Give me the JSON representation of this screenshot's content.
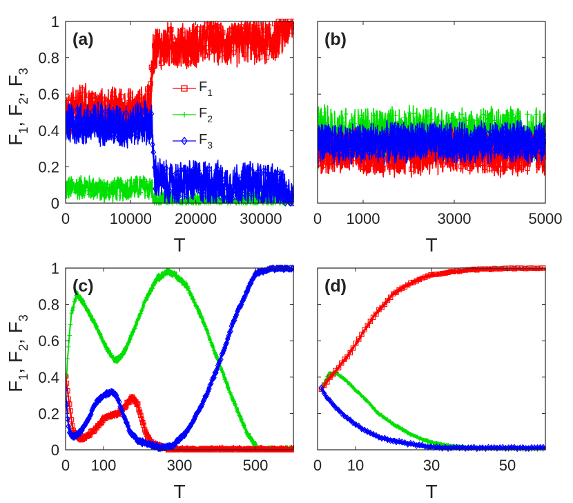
{
  "figure": {
    "colors": {
      "F1": "#ff0000",
      "F2": "#00e000",
      "F3": "#0000ff",
      "axis": "#262626"
    },
    "ylabel": {
      "main": "F",
      "subs": [
        "1",
        "2",
        "3"
      ],
      "sep": ", "
    },
    "legend": {
      "entries": [
        {
          "base": "F",
          "sub": "1",
          "marker": "square",
          "color": "#ff0000"
        },
        {
          "base": "F",
          "sub": "2",
          "marker": "plus",
          "color": "#00e000"
        },
        {
          "base": "F",
          "sub": "3",
          "marker": "diamond",
          "color": "#0000ff"
        }
      ]
    }
  },
  "chart_data": [
    {
      "id": "a",
      "label": "(a)",
      "type": "line",
      "xlabel": "T",
      "ylabel": "F1, F2, F3",
      "xlim": [
        0,
        35000
      ],
      "ylim": [
        0,
        1
      ],
      "xticks": [
        0,
        10000,
        20000,
        30000
      ],
      "xtick_labels": [
        "0",
        "10000",
        "20000",
        "30000"
      ],
      "yticks": [
        0,
        0.2,
        0.4,
        0.6,
        0.8,
        1
      ],
      "ytick_labels": [
        "0",
        "0.2",
        "0.4",
        "0.6",
        "0.8",
        "1"
      ],
      "show_yticklabels": true,
      "series": [
        {
          "name": "F1",
          "color": "#ff0000",
          "marker": "square",
          "x": [
            0,
            2000,
            5000,
            8000,
            11000,
            13000,
            13400,
            13800,
            16000,
            19000,
            22000,
            24000,
            26000,
            28000,
            30000,
            32000,
            33500,
            34500,
            35000
          ],
          "y": [
            0.45,
            0.55,
            0.5,
            0.52,
            0.5,
            0.55,
            0.82,
            0.85,
            0.87,
            0.86,
            0.9,
            0.88,
            0.87,
            0.9,
            0.88,
            0.9,
            0.95,
            1.0,
            1.0
          ],
          "noise": 0.09,
          "band": 0.03
        },
        {
          "name": "F2",
          "color": "#00e000",
          "marker": "plus",
          "x": [
            0,
            3000,
            6000,
            9000,
            12000,
            13300,
            13500,
            20000,
            30000,
            35000
          ],
          "y": [
            0.08,
            0.09,
            0.07,
            0.08,
            0.09,
            0.08,
            0.0,
            0.0,
            0.0,
            0.0
          ],
          "noise": 0.05,
          "band": 0.015
        },
        {
          "name": "F3",
          "color": "#0000ff",
          "marker": "diamond",
          "x": [
            0,
            3000,
            6000,
            9000,
            12000,
            13300,
            13600,
            16000,
            20000,
            23500,
            24200,
            28000,
            32000,
            33500,
            34000,
            35000
          ],
          "y": [
            0.45,
            0.43,
            0.44,
            0.42,
            0.45,
            0.42,
            0.15,
            0.1,
            0.12,
            0.11,
            0.09,
            0.11,
            0.1,
            0.08,
            0.0,
            0.0
          ],
          "noise": 0.08,
          "band": 0.035
        }
      ]
    },
    {
      "id": "b",
      "label": "(b)",
      "type": "line",
      "xlabel": "T",
      "ylabel": "",
      "xlim": [
        0,
        5000
      ],
      "ylim": [
        0,
        1
      ],
      "xticks": [
        0,
        1000,
        3000,
        5000
      ],
      "xtick_labels": [
        "0",
        "1000",
        "3000",
        "5000"
      ],
      "yticks": [
        0,
        0.2,
        0.4,
        0.6,
        0.8,
        1
      ],
      "ytick_labels": [
        "0",
        "0.2",
        "0.4",
        "0.6",
        "0.8",
        "1"
      ],
      "show_yticklabels": false,
      "series": [
        {
          "name": "F1",
          "color": "#ff0000",
          "marker": "square",
          "x": [
            0,
            1000,
            2000,
            3000,
            4000,
            5000
          ],
          "y": [
            0.28,
            0.28,
            0.27,
            0.29,
            0.27,
            0.28
          ],
          "noise": 0.09,
          "band": 0.03
        },
        {
          "name": "F2",
          "color": "#00e000",
          "marker": "plus",
          "x": [
            0,
            1000,
            2000,
            3000,
            4000,
            5000
          ],
          "y": [
            0.4,
            0.38,
            0.39,
            0.38,
            0.39,
            0.38
          ],
          "noise": 0.11,
          "band": 0.03
        },
        {
          "name": "F3",
          "color": "#0000ff",
          "marker": "diamond",
          "x": [
            0,
            1000,
            2000,
            3000,
            4000,
            5000
          ],
          "y": [
            0.33,
            0.33,
            0.34,
            0.33,
            0.34,
            0.33
          ],
          "noise": 0.07,
          "band": 0.035
        }
      ]
    },
    {
      "id": "c",
      "label": "(c)",
      "type": "line",
      "xlabel": "T",
      "ylabel": "F1, F2, F3",
      "xlim": [
        0,
        600
      ],
      "ylim": [
        0,
        1
      ],
      "xticks": [
        0,
        100,
        300,
        500
      ],
      "xtick_labels": [
        "0",
        "100",
        "300",
        "500"
      ],
      "yticks": [
        0,
        0.2,
        0.4,
        0.6,
        0.8,
        1
      ],
      "ytick_labels": [
        "0",
        "0.2",
        "0.4",
        "0.6",
        "0.8",
        "1"
      ],
      "show_yticklabels": true,
      "series": [
        {
          "name": "F1",
          "color": "#ff0000",
          "marker": "square",
          "x": [
            0,
            10,
            20,
            40,
            60,
            80,
            100,
            120,
            140,
            160,
            175,
            190,
            210,
            230,
            260,
            280,
            320,
            400,
            500,
            600
          ],
          "y": [
            0.4,
            0.25,
            0.1,
            0.06,
            0.08,
            0.12,
            0.17,
            0.19,
            0.2,
            0.25,
            0.29,
            0.25,
            0.1,
            0.03,
            0.01,
            0.0,
            0.0,
            0.0,
            0.0,
            0.0
          ],
          "noise": 0.008,
          "band": 0.012
        },
        {
          "name": "F2",
          "color": "#00e000",
          "marker": "plus",
          "x": [
            0,
            5,
            15,
            30,
            50,
            80,
            110,
            130,
            150,
            180,
            210,
            240,
            270,
            290,
            320,
            360,
            400,
            440,
            480,
            510,
            540,
            600
          ],
          "y": [
            0.3,
            0.5,
            0.75,
            0.86,
            0.8,
            0.68,
            0.55,
            0.49,
            0.52,
            0.66,
            0.82,
            0.94,
            0.98,
            0.96,
            0.9,
            0.72,
            0.5,
            0.28,
            0.08,
            0.0,
            0.0,
            0.0
          ],
          "noise": 0.008,
          "band": 0.012
        },
        {
          "name": "F3",
          "color": "#0000ff",
          "marker": "diamond",
          "x": [
            0,
            5,
            10,
            20,
            40,
            60,
            80,
            100,
            120,
            135,
            150,
            170,
            190,
            220,
            250,
            280,
            320,
            360,
            400,
            450,
            500,
            540,
            600
          ],
          "y": [
            0.33,
            0.18,
            0.1,
            0.07,
            0.1,
            0.17,
            0.26,
            0.3,
            0.32,
            0.3,
            0.2,
            0.1,
            0.05,
            0.03,
            0.01,
            0.02,
            0.1,
            0.25,
            0.45,
            0.75,
            0.97,
            1.0,
            1.0
          ],
          "noise": 0.008,
          "band": 0.012
        }
      ]
    },
    {
      "id": "d",
      "label": "(d)",
      "type": "line",
      "xlabel": "T",
      "ylabel": "",
      "xlim": [
        0,
        60
      ],
      "ylim": [
        0,
        1
      ],
      "xticks": [
        0,
        10,
        30,
        50
      ],
      "xtick_labels": [
        "0",
        "10",
        "30",
        "50"
      ],
      "yticks": [
        0,
        0.2,
        0.4,
        0.6,
        0.8,
        1
      ],
      "ytick_labels": [
        "0",
        "0.2",
        "0.4",
        "0.6",
        "0.8",
        "1"
      ],
      "show_yticklabels": false,
      "series": [
        {
          "name": "F1",
          "color": "#ff0000",
          "marker": "square",
          "x": [
            1,
            3,
            5,
            8,
            10,
            13,
            15,
            18,
            20,
            23,
            25,
            28,
            30,
            33,
            35,
            38,
            40,
            45,
            50,
            55,
            60
          ],
          "y": [
            0.33,
            0.39,
            0.44,
            0.52,
            0.58,
            0.68,
            0.74,
            0.81,
            0.86,
            0.9,
            0.92,
            0.95,
            0.96,
            0.97,
            0.98,
            0.985,
            0.99,
            0.995,
            1.0,
            1.0,
            1.0
          ],
          "noise": 0.004,
          "band": 0.006
        },
        {
          "name": "F2",
          "color": "#00e000",
          "marker": "plus",
          "x": [
            1,
            2,
            3,
            5,
            7,
            10,
            13,
            16,
            20,
            25,
            30,
            35,
            40,
            50,
            60
          ],
          "y": [
            0.33,
            0.38,
            0.42,
            0.42,
            0.39,
            0.33,
            0.27,
            0.2,
            0.14,
            0.08,
            0.04,
            0.02,
            0.01,
            0.005,
            0.005
          ],
          "noise": 0.004,
          "band": 0.006
        },
        {
          "name": "F3",
          "color": "#0000ff",
          "marker": "diamond",
          "x": [
            1,
            2,
            4,
            6,
            8,
            10,
            13,
            16,
            20,
            25,
            30,
            35,
            40,
            50,
            60
          ],
          "y": [
            0.34,
            0.3,
            0.25,
            0.21,
            0.17,
            0.14,
            0.1,
            0.07,
            0.05,
            0.03,
            0.015,
            0.01,
            0.01,
            0.01,
            0.01
          ],
          "noise": 0.004,
          "band": 0.006
        }
      ]
    }
  ]
}
